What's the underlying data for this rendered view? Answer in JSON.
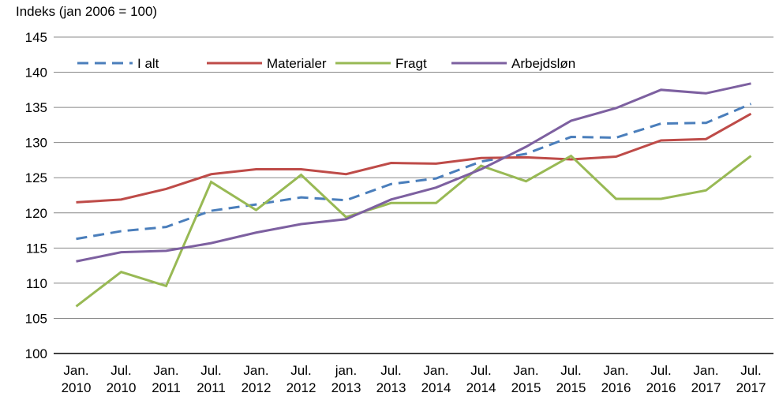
{
  "chart_data": {
    "type": "line",
    "y_label": "Indeks (jan 2006 = 100)",
    "categories": [
      "Jan. 2010",
      "Jul. 2010",
      "Jan. 2011",
      "Jul. 2011",
      "Jan. 2012",
      "Jul. 2012",
      "jan. 2013",
      "Jul. 2013",
      "Jan. 2014",
      "Jul. 2014",
      "Jan. 2015",
      "Jul. 2015",
      "Jan. 2016",
      "Jul. 2016",
      "Jan. 2017",
      "Jul. 2017"
    ],
    "series": [
      {
        "name": "I alt",
        "color": "#4a7ebb",
        "dashed": true,
        "values": [
          116.3,
          117.4,
          118,
          120.3,
          121.2,
          122.2,
          121.8,
          124.1,
          124.9,
          127.3,
          128.4,
          130.8,
          130.7,
          132.7,
          132.8,
          135.5
        ]
      },
      {
        "name": "Materialer",
        "color": "#be4b48",
        "dashed": false,
        "values": [
          121.5,
          121.9,
          123.4,
          125.5,
          126.2,
          126.2,
          125.5,
          127.1,
          127,
          127.8,
          127.9,
          127.6,
          128,
          130.3,
          130.5,
          134.1
        ]
      },
      {
        "name": "Fragt",
        "color": "#98b954",
        "dashed": false,
        "values": [
          106.7,
          111.6,
          109.6,
          124.4,
          120.4,
          125.4,
          119.4,
          121.4,
          121.4,
          126.7,
          124.5,
          128.1,
          122,
          122,
          123.2,
          128.1
        ]
      },
      {
        "name": "Arbejdsløn",
        "color": "#7d60a0",
        "dashed": false,
        "values": [
          113.1,
          114.4,
          114.6,
          115.7,
          117.2,
          118.4,
          119.1,
          121.9,
          123.6,
          126.2,
          129.4,
          133.1,
          134.9,
          137.5,
          137,
          138.4
        ]
      }
    ],
    "ylim": [
      100,
      145
    ],
    "yticks": [
      100,
      105,
      110,
      115,
      120,
      125,
      130,
      135,
      140,
      145
    ],
    "grid": true
  }
}
